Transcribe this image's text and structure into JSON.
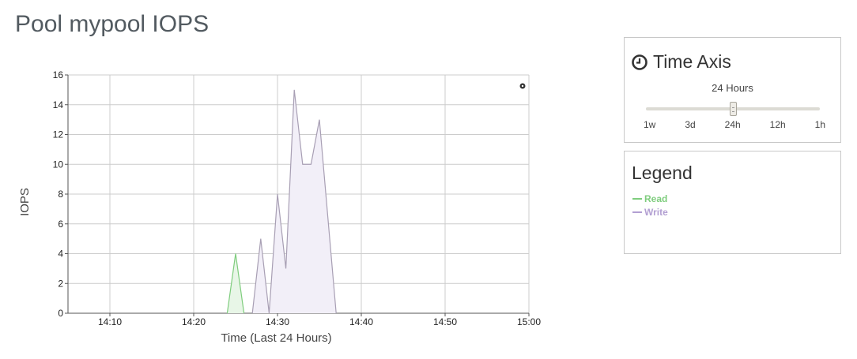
{
  "page": {
    "title": "Pool mypool IOPS"
  },
  "chart_data": {
    "type": "area",
    "xlabel": "Time (Last 24 Hours)",
    "ylabel": "IOPS",
    "xlim": [
      "14:05",
      "15:00"
    ],
    "ylim": [
      0,
      16
    ],
    "x_ticks": [
      "14:10",
      "14:20",
      "14:30",
      "14:40",
      "14:50",
      "15:00"
    ],
    "y_ticks": [
      0,
      2,
      4,
      6,
      8,
      10,
      12,
      14,
      16
    ],
    "grid": true,
    "series": [
      {
        "name": "Read",
        "color": "#7fcd7e",
        "fill": "#e8f6e7",
        "points": [
          [
            "14:24",
            0
          ],
          [
            "14:25",
            4
          ],
          [
            "14:26",
            0
          ]
        ]
      },
      {
        "name": "Write",
        "color": "#a89fb4",
        "fill": "#f2eff8",
        "points": [
          [
            "14:27",
            0
          ],
          [
            "14:28",
            5
          ],
          [
            "14:29",
            0
          ],
          [
            "14:30",
            8
          ],
          [
            "14:31",
            3
          ],
          [
            "14:32",
            15
          ],
          [
            "14:33",
            10
          ],
          [
            "14:34",
            10
          ],
          [
            "14:35",
            13
          ],
          [
            "14:37",
            0
          ]
        ]
      }
    ]
  },
  "time_axis": {
    "title": "Time Axis",
    "icon": "clock-icon",
    "selected_label": "24 Hours",
    "options": [
      "1w",
      "3d",
      "24h",
      "12h",
      "1h"
    ],
    "selected": "24h"
  },
  "legend": {
    "title": "Legend",
    "items": [
      {
        "label": "Read",
        "color": "#7fcd7e"
      },
      {
        "label": "Write",
        "color": "#b29fd2"
      }
    ]
  }
}
